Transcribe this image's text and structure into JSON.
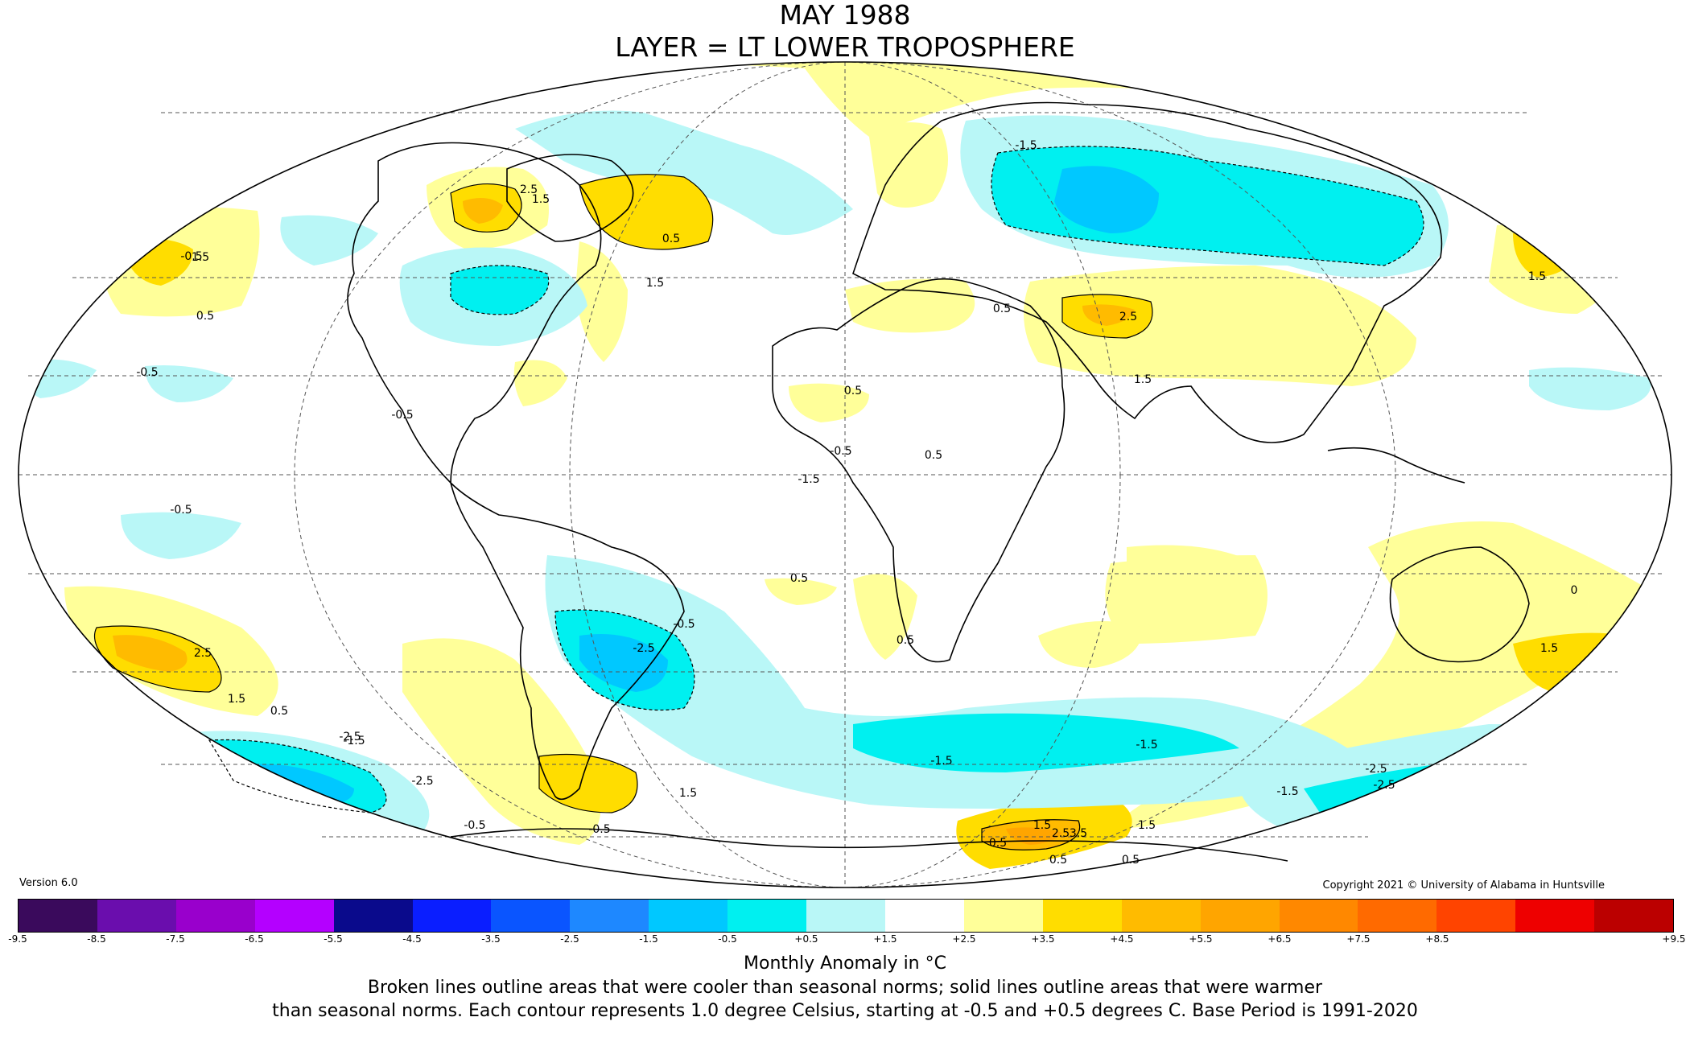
{
  "title": {
    "line1": "MAY 1988",
    "line2": "LAYER = LT LOWER TROPOSPHERE"
  },
  "version": "Version 6.0",
  "copyright": "Copyright 2021 © University of Alabama in Huntsville",
  "colorbar": {
    "tick_labels": [
      "-9.5",
      "-8.5",
      "-7.5",
      "-6.5",
      "-5.5",
      "-4.5",
      "-3.5",
      "-2.5",
      "-1.5",
      "-0.5",
      "+0.5",
      "+1.5",
      "+2.5",
      "+3.5",
      "+4.5",
      "+5.5",
      "+6.5",
      "+7.5",
      "+8.5",
      "+9.5"
    ],
    "colors": [
      "#3a0a5c",
      "#6a0dad",
      "#9900cc",
      "#b400ff",
      "#0a0a8c",
      "#0a1eff",
      "#0a55ff",
      "#1e88ff",
      "#00c8ff",
      "#00f0f0",
      "#b9f7f7",
      "#ffffff",
      "#ffff99",
      "#ffdd00",
      "#ffbb00",
      "#ffa500",
      "#ff8800",
      "#ff6a00",
      "#ff4400",
      "#ee0000",
      "#bb0000"
    ]
  },
  "legend_title": "Monthly Anomaly in °C",
  "caption": {
    "line1": "Broken lines outline areas that were cooler than seasonal norms; solid lines outline areas that were warmer",
    "line2": "than seasonal norms. Each contour represents 1.0 degree Celsius, starting at -0.5 and +0.5 degrees C. Base Period is 1991-2020"
  },
  "contour_labels": [
    "-0.5",
    "-0.5",
    "-0.5",
    "-1.5",
    "-2.5",
    "-1.5",
    "-0.5",
    "-0.5",
    "-1.5",
    "-2.5",
    "-0.5",
    "-1.5",
    "-2.5",
    "-2.5",
    "0.5",
    "1.5",
    "2.5",
    "1.5",
    "0.5",
    "1.5",
    "2.5",
    "1.5",
    "0.5",
    "1.5",
    "0.5",
    "1.5",
    "0.5",
    "0.5",
    "0.5",
    "1.5",
    "2.5",
    "1.5",
    "0.5",
    "0.5",
    "1.5",
    "2.5",
    "3.5",
    "0.5",
    "0.5",
    "1.5",
    "-1.5",
    "-2.5",
    "-1.5",
    "-0.5",
    "-0.5",
    "0"
  ],
  "colors": {
    "cool_light": "#b9f7f7",
    "cool_mid": "#00f0f0",
    "cool_strong": "#00c8ff",
    "cool_deep": "#1e88ff",
    "warm_light": "#ffff99",
    "warm_mid": "#ffdd00",
    "warm_strong": "#ffbb00",
    "warm_deep": "#ffa500"
  }
}
